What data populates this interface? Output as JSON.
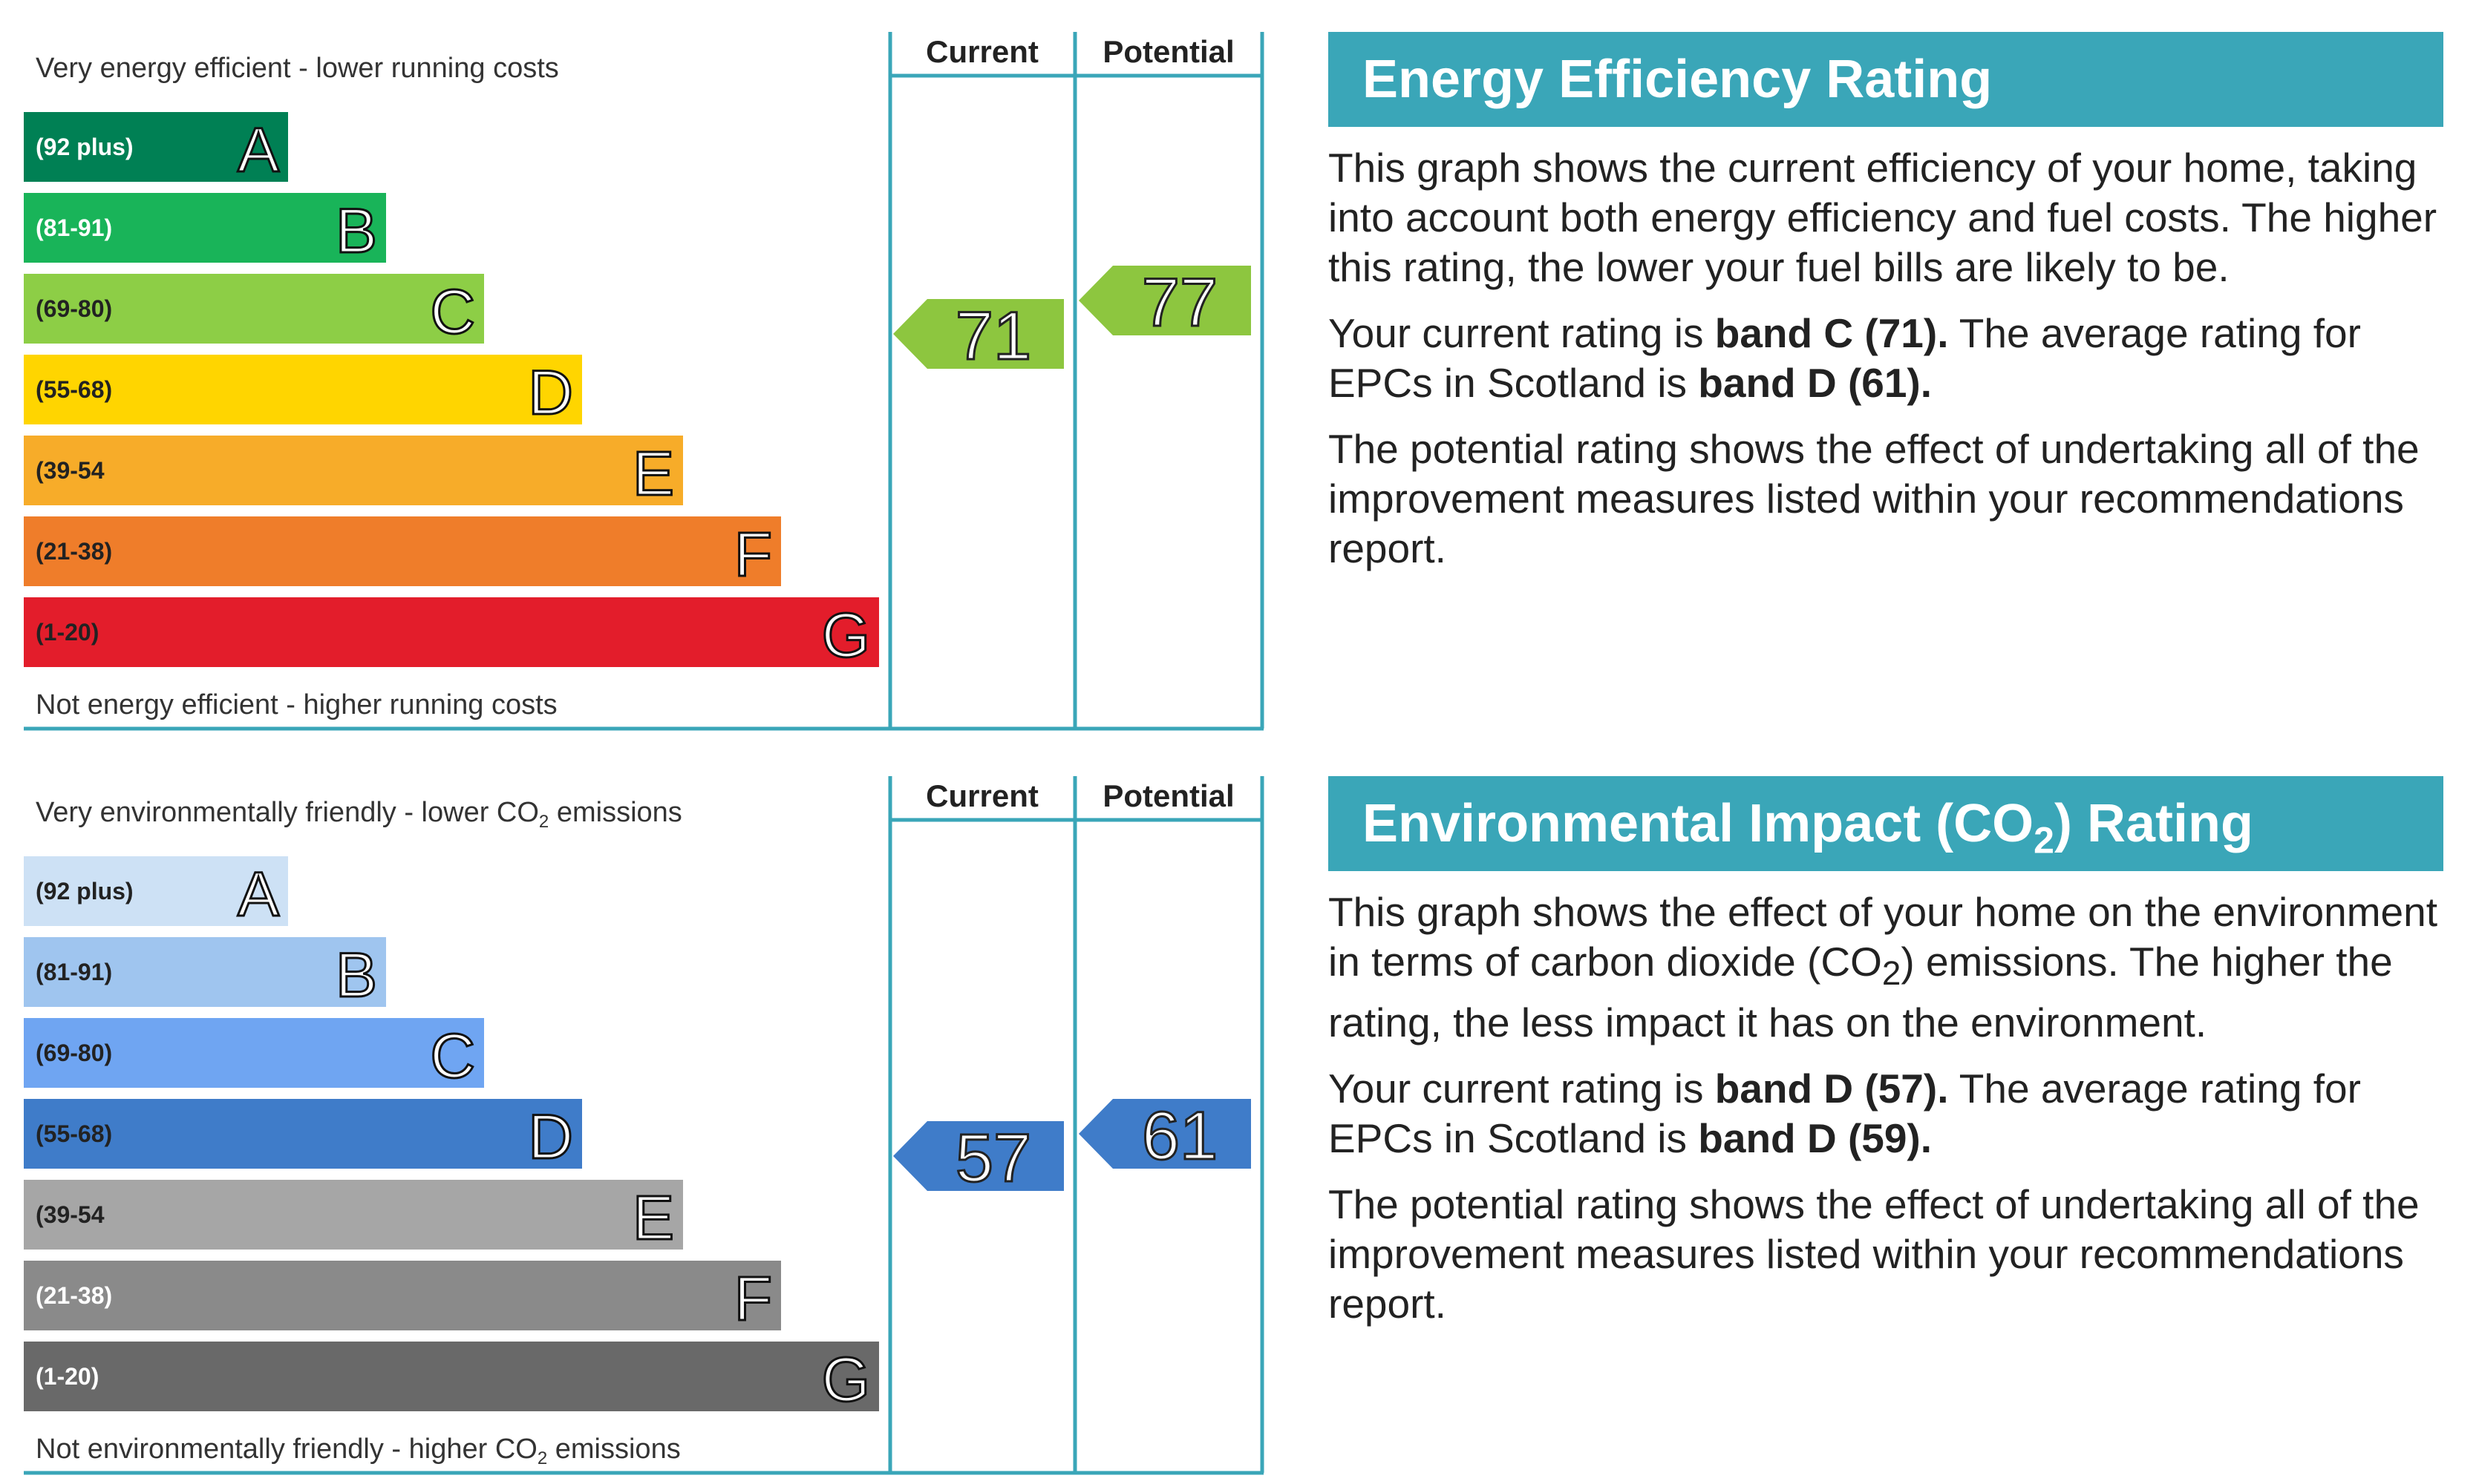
{
  "colors": {
    "frame": "#3aa6b8"
  },
  "chart_data": [
    {
      "type": "bar",
      "id": "energy",
      "top_label": "Very energy efficient - lower running costs",
      "bottom_label": "Not energy efficient - higher running costs",
      "column_headers": [
        "Current",
        "Potential"
      ],
      "bands": [
        {
          "letter": "A",
          "range": "(92 plus)",
          "color": "#008054",
          "range_color": "#ffffff"
        },
        {
          "letter": "B",
          "range": "(81-91)",
          "color": "#19b459",
          "range_color": "#ffffff"
        },
        {
          "letter": "C",
          "range": "(69-80)",
          "color": "#8dce46",
          "range_color": "#222222"
        },
        {
          "letter": "D",
          "range": "(55-68)",
          "color": "#ffd500",
          "range_color": "#222222"
        },
        {
          "letter": "E",
          "range": "(39-54",
          "color": "#f7ac29",
          "range_color": "#222222"
        },
        {
          "letter": "F",
          "range": "(21-38)",
          "color": "#ef7d2a",
          "range_color": "#222222"
        },
        {
          "letter": "G",
          "range": "(1-20)",
          "color": "#e31d2b",
          "range_color": "#222222"
        }
      ],
      "current": {
        "value": 71,
        "band": "C",
        "color": "#8dc63f"
      },
      "potential": {
        "value": 77,
        "band": "C",
        "color": "#8dc63f"
      }
    },
    {
      "type": "bar",
      "id": "environment",
      "top_label": "Very environmentally friendly - lower CO",
      "top_label_suffix": " emissions",
      "bottom_label": "Not environmentally friendly - higher CO",
      "bottom_label_suffix": " emissions",
      "subscript": "2",
      "column_headers": [
        "Current",
        "Potential"
      ],
      "bands": [
        {
          "letter": "A",
          "range": "(92 plus)",
          "color": "#cde1f5",
          "range_color": "#222222"
        },
        {
          "letter": "B",
          "range": "(81-91)",
          "color": "#9fc5ef",
          "range_color": "#222222"
        },
        {
          "letter": "C",
          "range": "(69-80)",
          "color": "#6fa5f2",
          "range_color": "#222222"
        },
        {
          "letter": "D",
          "range": "(55-68)",
          "color": "#3f7cc9",
          "range_color": "#222222"
        },
        {
          "letter": "E",
          "range": "(39-54",
          "color": "#a6a6a6",
          "range_color": "#222222"
        },
        {
          "letter": "F",
          "range": "(21-38)",
          "color": "#8a8a8a",
          "range_color": "#ffffff"
        },
        {
          "letter": "G",
          "range": "(1-20)",
          "color": "#696969",
          "range_color": "#ffffff"
        }
      ],
      "current": {
        "value": 57,
        "band": "D",
        "color": "#3f7cc9"
      },
      "potential": {
        "value": 61,
        "band": "D",
        "color": "#3f7cc9"
      }
    }
  ],
  "energy_panel": {
    "title": "Energy Efficiency Rating",
    "p1": "This graph shows the current efficiency of your home, taking into account both energy efficiency and fuel costs. The higher this rating, the lower your fuel bills are likely to be.",
    "p2_a": "Your current rating is ",
    "p2_b": "band C (71).",
    "p2_c": " The average rating for EPCs in Scotland is ",
    "p2_d": "band D (61).",
    "p3": "The potential rating shows the effect of undertaking all of the improvement measures listed within your recommendations report."
  },
  "env_panel": {
    "title_a": "Environmental Impact (CO",
    "title_sub": "2",
    "title_b": ") Rating",
    "p1_a": "This graph shows the effect of your home on the environment in terms of carbon dioxide (CO",
    "p1_sub": "2",
    "p1_b": ") emissions. The higher the rating, the less impact it has on the environment.",
    "p2_a": "Your current rating is ",
    "p2_b": "band D (57).",
    "p2_c": " The average rating for EPCs in Scotland is ",
    "p2_d": "band D (59).",
    "p3": "The potential rating shows the effect of undertaking all of the improvement measures listed within your recommendations report."
  }
}
